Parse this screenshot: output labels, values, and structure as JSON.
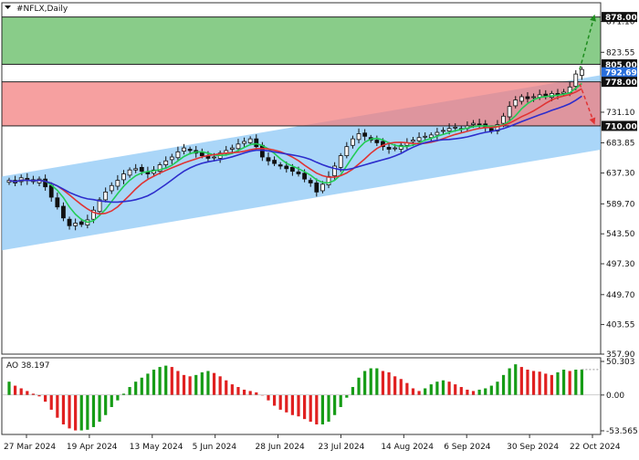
{
  "chart_data": [
    {
      "type": "candlestick",
      "title": "#NFLX,Daily",
      "ylim": [
        357.9,
        900.0
      ],
      "yticks": [
        "871.10",
        "823.55",
        "777.30",
        "731.10",
        "683.85",
        "637.30",
        "589.70",
        "543.50",
        "497.30",
        "449.70",
        "403.55",
        "357.90"
      ],
      "xticks": [
        "27 Mar 2024",
        "19 Apr 2024",
        "13 May 2024",
        "5 Jun 2024",
        "28 Jun 2024",
        "23 Jul 2024",
        "14 Aug 2024",
        "6 Sep 2024",
        "30 Sep 2024",
        "22 Oct 2024"
      ],
      "price_labels": [
        {
          "value": 878.0,
          "text": "878.00",
          "style": "dark"
        },
        {
          "value": 805.0,
          "text": "805.00",
          "style": "dark"
        },
        {
          "value": 792.69,
          "text": "792.69",
          "style": "blue"
        },
        {
          "value": 778.0,
          "text": "778.00",
          "style": "dark"
        },
        {
          "value": 710.0,
          "text": "710.00",
          "style": "dark"
        }
      ],
      "zones": [
        {
          "name": "target-zone",
          "from": 805.0,
          "to": 878.0,
          "color": "#5cb85c"
        },
        {
          "name": "stop-zone",
          "from": 710.0,
          "to": 778.0,
          "color": "#f27c7c"
        }
      ],
      "channel": {
        "color": "#8ec8f5",
        "upper_start": 632.0,
        "upper_end": 793.0,
        "lower_start": 518.0,
        "lower_end": 678.0
      },
      "closes": [
        626,
        622,
        630,
        626,
        624,
        628,
        616,
        600,
        585,
        568,
        556,
        560,
        558,
        565,
        580,
        596,
        608,
        618,
        626,
        636,
        642,
        644,
        640,
        636,
        642,
        650,
        656,
        662,
        670,
        676,
        672,
        668,
        664,
        660,
        662,
        668,
        672,
        676,
        682,
        686,
        690,
        678,
        662,
        656,
        652,
        648,
        644,
        640,
        636,
        628,
        622,
        608,
        620,
        632,
        648,
        664,
        678,
        690,
        698,
        694,
        688,
        684,
        678,
        674,
        676,
        680,
        684,
        688,
        692,
        694,
        696,
        700,
        703,
        706,
        708,
        706,
        710,
        714,
        712,
        708,
        702,
        712,
        725,
        740,
        750,
        755,
        752,
        755,
        758,
        756,
        760,
        758,
        762,
        770,
        790,
        797
      ],
      "ma": [
        {
          "name": "ma-fast",
          "color": "#22cc55",
          "period": 5
        },
        {
          "name": "ma-mid",
          "color": "#e03333",
          "period": 9
        },
        {
          "name": "ma-slow",
          "color": "#2d2dcc",
          "period": 15
        }
      ],
      "arrows": [
        {
          "name": "up-forecast",
          "from": [
            0.965,
            797
          ],
          "to": [
            0.99,
            882
          ],
          "color": "#1e8c1e"
        },
        {
          "name": "down-forecast",
          "from": [
            0.965,
            775
          ],
          "to": [
            0.99,
            712
          ],
          "color": "#e03333"
        }
      ]
    },
    {
      "type": "bar",
      "title": "AO 38.197",
      "ylim": [
        -53.565,
        50.303
      ],
      "yticks": [
        "50.303",
        "0.00",
        "-53.565"
      ],
      "values": [
        20,
        14,
        10,
        6,
        2,
        -2,
        -10,
        -22,
        -34,
        -44,
        -50,
        -53,
        -53,
        -52,
        -48,
        -40,
        -30,
        -18,
        -8,
        2,
        12,
        20,
        26,
        32,
        38,
        42,
        44,
        42,
        36,
        30,
        28,
        30,
        34,
        36,
        33,
        28,
        22,
        16,
        12,
        8,
        6,
        4,
        0,
        -8,
        -16,
        -22,
        -26,
        -30,
        -32,
        -36,
        -40,
        -44,
        -44,
        -40,
        -30,
        -18,
        -4,
        12,
        26,
        36,
        40,
        40,
        36,
        34,
        28,
        24,
        18,
        10,
        6,
        10,
        16,
        20,
        22,
        20,
        16,
        12,
        8,
        6,
        8,
        10,
        14,
        20,
        30,
        40,
        46,
        42,
        38,
        36,
        35,
        32,
        30,
        34,
        38,
        36,
        38,
        38.197
      ],
      "colors": {
        "up": "#169c16",
        "down": "#e02020"
      }
    }
  ]
}
